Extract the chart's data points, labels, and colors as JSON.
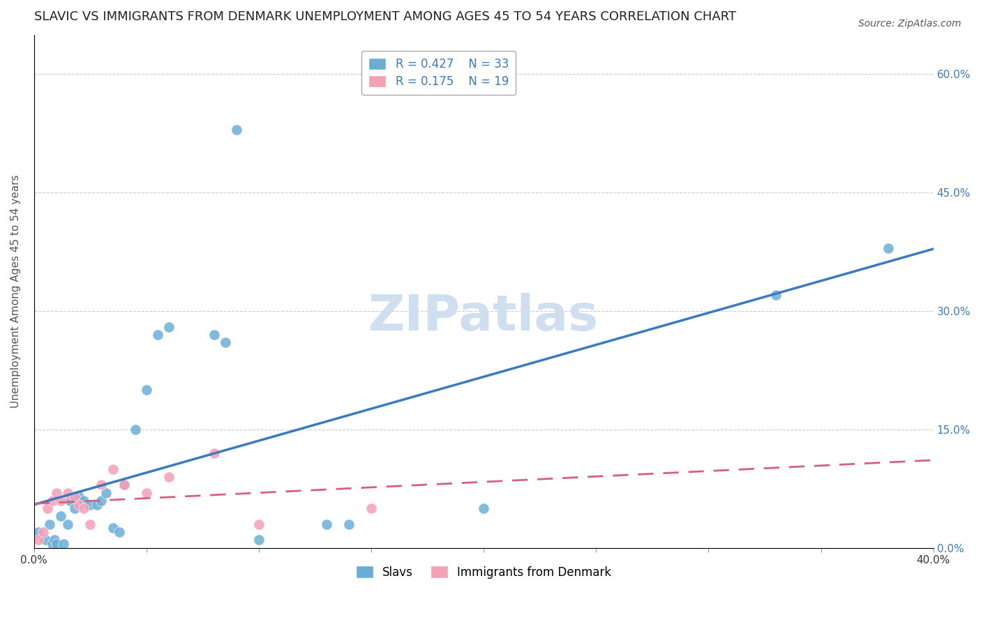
{
  "title": "SLAVIC VS IMMIGRANTS FROM DENMARK UNEMPLOYMENT AMONG AGES 45 TO 54 YEARS CORRELATION CHART",
  "source_text": "Source: ZipAtlas.com",
  "ylabel": "Unemployment Among Ages 45 to 54 years",
  "xlabel": "",
  "xlim": [
    0.0,
    0.4
  ],
  "ylim": [
    0.0,
    0.65
  ],
  "xticks": [
    0.0,
    0.05,
    0.1,
    0.15,
    0.2,
    0.25,
    0.3,
    0.35,
    0.4
  ],
  "xtick_labels": [
    "0.0%",
    "",
    "",
    "",
    "",
    "",
    "",
    "",
    "40.0%"
  ],
  "ytick_labels_right": [
    "0.0%",
    "15.0%",
    "30.0%",
    "45.0%",
    "60.0%"
  ],
  "yticks_right": [
    0.0,
    0.15,
    0.3,
    0.45,
    0.6
  ],
  "R_slavs": 0.427,
  "N_slavs": 33,
  "R_denmark": 0.175,
  "N_denmark": 19,
  "color_slavs": "#6aaed6",
  "color_denmark": "#f4a0b5",
  "color_line_slavs": "#3a7abf",
  "color_line_denmark": "#d4607a",
  "watermark": "ZIPatlas",
  "watermark_color": "#d0dff0",
  "slavs_x": [
    0.002,
    0.005,
    0.007,
    0.008,
    0.009,
    0.01,
    0.012,
    0.013,
    0.015,
    0.016,
    0.018,
    0.02,
    0.022,
    0.025,
    0.028,
    0.03,
    0.032,
    0.035,
    0.038,
    0.04,
    0.045,
    0.05,
    0.055,
    0.06,
    0.08,
    0.085,
    0.09,
    0.1,
    0.13,
    0.14,
    0.2,
    0.33,
    0.38
  ],
  "slavs_y": [
    0.02,
    0.01,
    0.03,
    0.005,
    0.01,
    0.005,
    0.04,
    0.005,
    0.03,
    0.06,
    0.05,
    0.065,
    0.06,
    0.055,
    0.055,
    0.06,
    0.07,
    0.025,
    0.02,
    0.08,
    0.15,
    0.2,
    0.27,
    0.28,
    0.27,
    0.26,
    0.53,
    0.01,
    0.03,
    0.03,
    0.05,
    0.32,
    0.38
  ],
  "denmark_x": [
    0.002,
    0.004,
    0.006,
    0.008,
    0.01,
    0.012,
    0.015,
    0.018,
    0.02,
    0.022,
    0.025,
    0.03,
    0.035,
    0.04,
    0.05,
    0.06,
    0.08,
    0.1,
    0.15
  ],
  "denmark_y": [
    0.01,
    0.02,
    0.05,
    0.06,
    0.07,
    0.06,
    0.07,
    0.065,
    0.055,
    0.05,
    0.03,
    0.08,
    0.1,
    0.08,
    0.07,
    0.09,
    0.12,
    0.03,
    0.05
  ],
  "background_color": "#ffffff",
  "grid_color": "#cccccc",
  "title_fontsize": 13,
  "axis_label_fontsize": 11,
  "tick_fontsize": 11,
  "legend_fontsize": 12
}
